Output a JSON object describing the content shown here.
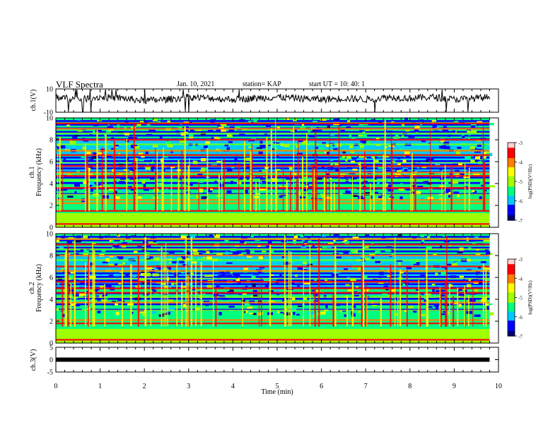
{
  "header": {
    "title": "VLF Spectra",
    "date": "Jan. 10, 2021",
    "station": "station= KAP",
    "start": "start  UT =   10: 40: 1"
  },
  "colors": {
    "trace": "#000000",
    "colormap": [
      "#00006e",
      "#0000ff",
      "#00c8ff",
      "#00ff80",
      "#a0ff00",
      "#ffff00",
      "#ff8000",
      "#ff0000",
      "#ffd0d0"
    ]
  },
  "chart_data": [
    {
      "type": "line",
      "panel": "ch1-waveform",
      "ylabel": "ch.1(V)",
      "ylim": [
        -10,
        10
      ],
      "yticks": [
        "10",
        "-10"
      ],
      "xlim": [
        0,
        10
      ],
      "description_of_series": "single noisy waveform",
      "series": [
        {
          "x": [
            0,
            0.5,
            1,
            1.5,
            2,
            2.5,
            3,
            3.5,
            4,
            4.5,
            5,
            5.5,
            6,
            6.5,
            7,
            7.5,
            8,
            8.5,
            9,
            9.5,
            9.8
          ],
          "y": [
            3,
            1,
            3,
            2,
            0,
            1,
            3,
            2,
            1,
            2,
            3,
            2,
            1,
            2,
            1,
            3,
            2,
            3,
            1,
            2,
            3
          ]
        }
      ]
    },
    {
      "type": "heatmap",
      "panel": "ch1-spectrogram",
      "ylabel": "Frequency (kHz)",
      "channel_label": "ch.1",
      "ylim": [
        0,
        10
      ],
      "yticks": [
        "0",
        "2",
        "4",
        "6",
        "8",
        "10"
      ],
      "xlim": [
        0,
        9.8
      ],
      "colorbar": {
        "label": "log(PSD)(V²/Hz)",
        "range": [
          -7,
          -3
        ],
        "ticks": [
          "-3",
          "-4",
          "-5",
          "-6",
          "-7"
        ]
      },
      "strong_bands_khz": [
        0.3,
        1.5,
        2.2,
        2.5,
        3.6,
        4.7,
        5.0,
        5.6,
        6.6,
        7.0,
        8.0,
        9.0,
        9.5
      ],
      "weak_bands_khz": [
        3.0,
        4.3,
        5.9,
        7.6,
        8.6
      ]
    },
    {
      "type": "heatmap",
      "panel": "ch2-spectrogram",
      "ylabel": "Frequency (kHz)",
      "channel_label": "ch.2",
      "ylim": [
        0,
        10
      ],
      "yticks": [
        "0",
        "2",
        "4",
        "6",
        "8",
        "10"
      ],
      "xlim": [
        0,
        9.8
      ],
      "colorbar": {
        "label": "log(PSD)(V²/Hz)",
        "range": [
          -7,
          -3
        ],
        "ticks": [
          "-3",
          "-4",
          "-5",
          "-6",
          "-7"
        ]
      },
      "strong_bands_khz": [
        0.3,
        1.8,
        2.1,
        3.7,
        4.6,
        5.0,
        5.6,
        6.6,
        7.0,
        8.0,
        9.0,
        9.5
      ],
      "weak_bands_khz": [
        3.0,
        4.2,
        5.9,
        7.6,
        8.6
      ]
    },
    {
      "type": "line",
      "panel": "ch3-waveform",
      "ylabel": "ch.3(V)",
      "ylim": [
        -5,
        5
      ],
      "yticks": [
        "5",
        "0",
        "-5"
      ],
      "xlim": [
        0,
        10
      ],
      "series": [
        {
          "x": [
            0,
            9.8
          ],
          "y": [
            0,
            0
          ]
        }
      ]
    }
  ],
  "xaxis": {
    "label": "Time (min)",
    "ticks": [
      "0",
      "1",
      "2",
      "3",
      "4",
      "5",
      "6",
      "7",
      "8",
      "9",
      "10"
    ]
  }
}
